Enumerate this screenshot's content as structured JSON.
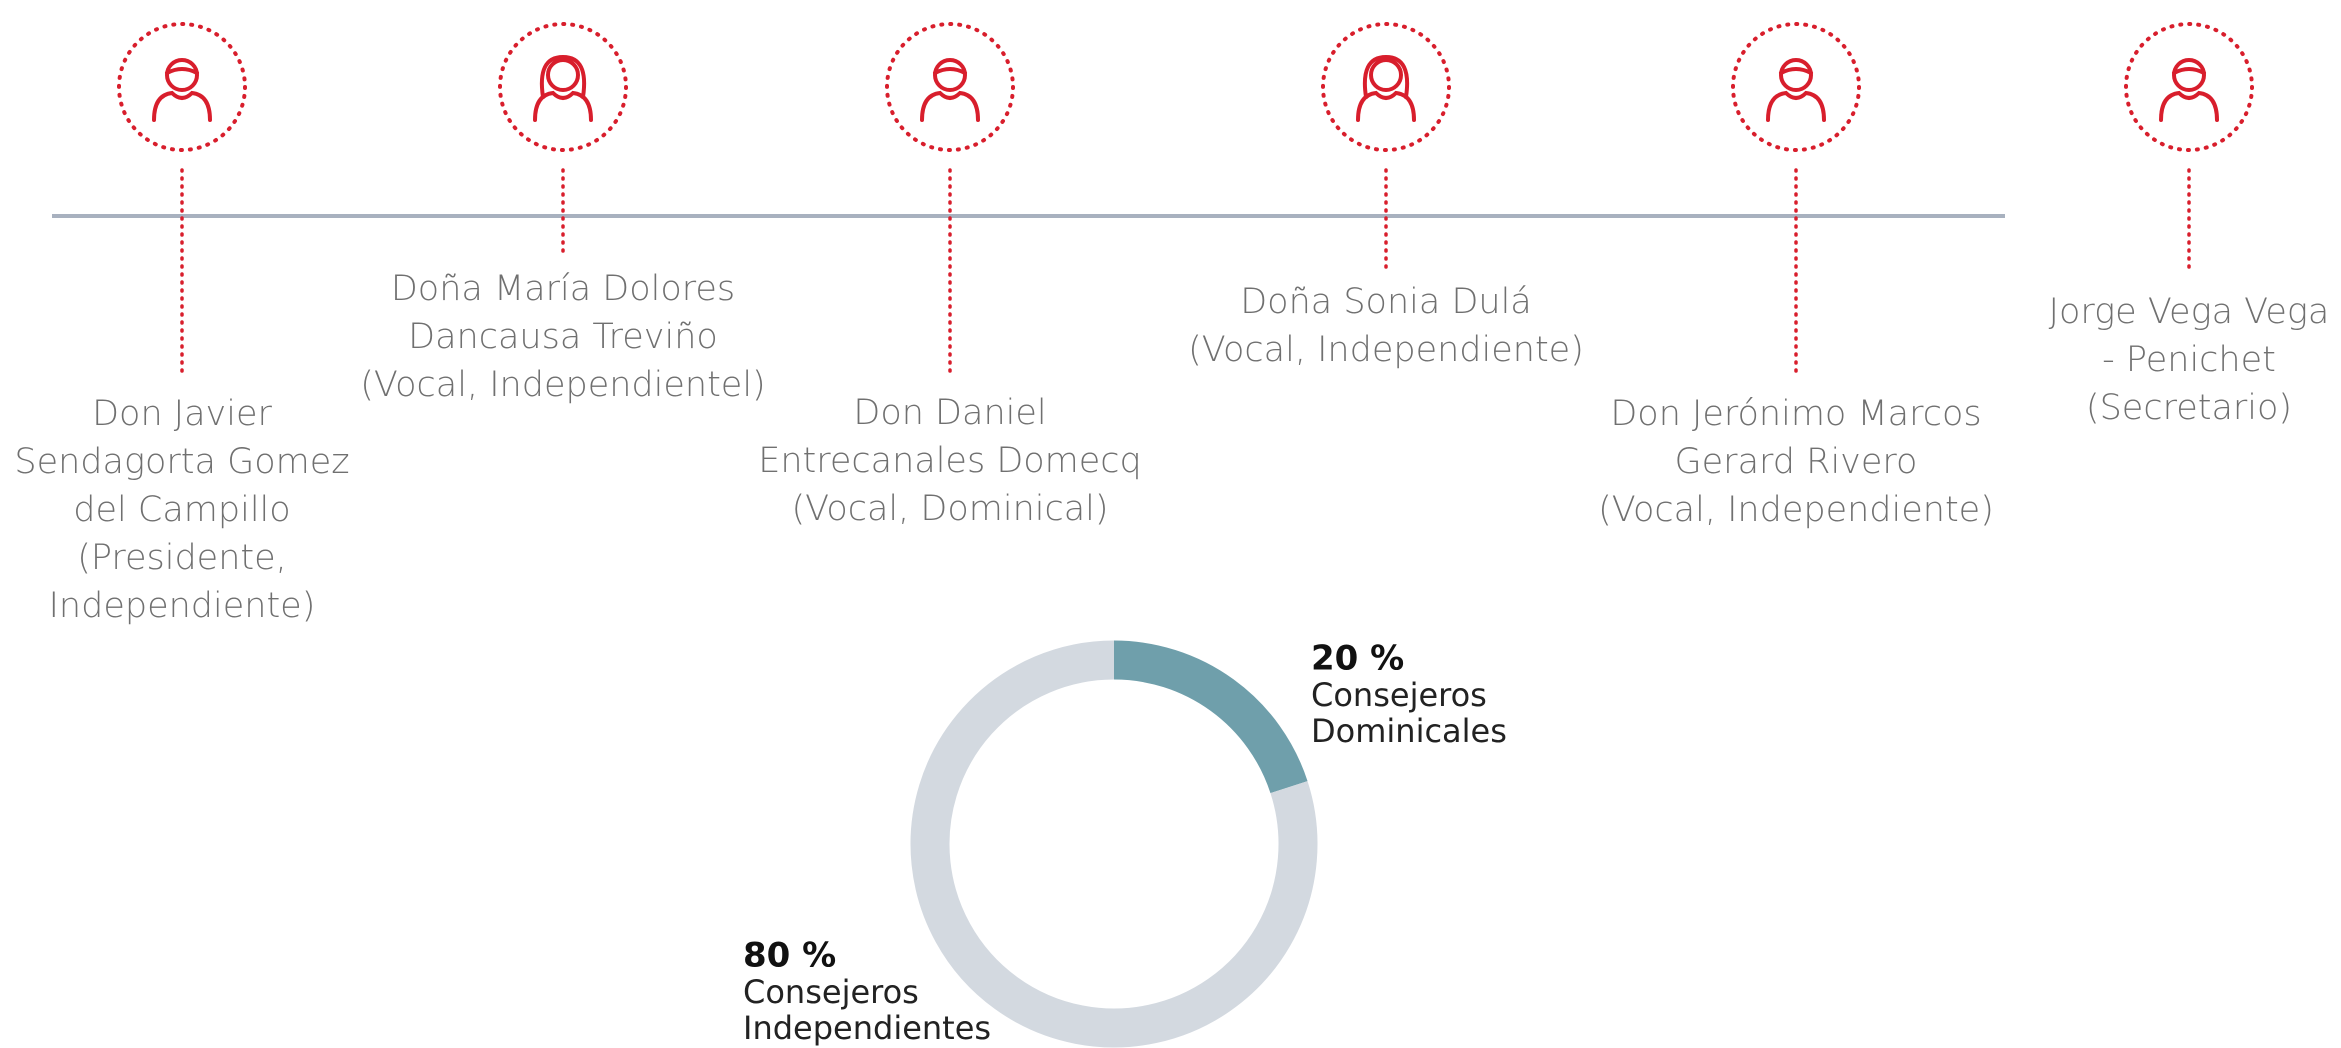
{
  "members": [
    {
      "lines": [
        "Don Javier",
        "Sendagorta Gomez",
        "del Campillo",
        "(Presidente,",
        "Independiente)"
      ]
    },
    {
      "lines": [
        "Doña María Dolores",
        "Dancausa Treviño",
        "(Vocal, Independientel)"
      ]
    },
    {
      "lines": [
        "Don Daniel",
        "Entrecanales Domecq",
        "(Vocal, Dominical)"
      ]
    },
    {
      "lines": [
        "Doña Sonia Dulá",
        "(Vocal, Independiente)"
      ]
    },
    {
      "lines": [
        "Don Jerónimo Marcos",
        "Gerard Rivero",
        "(Vocal, Independiente)"
      ]
    },
    {
      "lines": [
        "Jorge Vega Vega",
        "- Penichet",
        "(Secretario)"
      ]
    }
  ],
  "donut": {
    "segments": [
      {
        "value": 20,
        "value_label": "20 %",
        "name_lines": [
          "Consejeros",
          "Dominicales"
        ],
        "color": "#6f9fab"
      },
      {
        "value": 80,
        "value_label": "80 %",
        "name_lines": [
          "Consejeros",
          "Independientes"
        ],
        "color": "#d3d9e0"
      }
    ]
  }
}
